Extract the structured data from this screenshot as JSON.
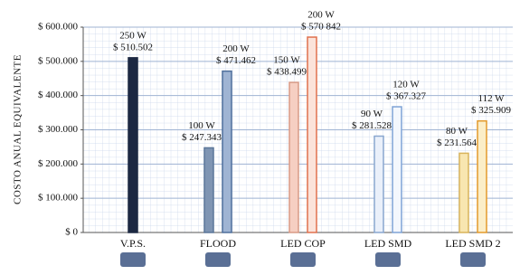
{
  "chart_data": {
    "type": "bar",
    "y_label": "COSTO ANUAL EQUIVALENTE",
    "categories": [
      "V.P.S.",
      "FLOOD",
      "LED COP",
      "LED SMD",
      "LED SMD 2"
    ],
    "series": [
      {
        "values": [
          510502,
          247343,
          438499,
          281528,
          231564
        ],
        "value_labels": [
          "$ 510.502",
          "$ 247.343",
          "$ 438.499",
          "$ 281.528",
          "$ 231.564"
        ],
        "watt_labels": [
          "250 W",
          "100 W",
          "150 W",
          "90 W",
          "80 W"
        ],
        "colors": [
          "#1c2842",
          "#7f95b3",
          "#f6cfc2",
          "#eaf0fa",
          "#f8e6b0"
        ],
        "strokes": [
          "#1c2842",
          "#5b7699",
          "#d89a86",
          "#8aa7cf",
          "#d9b45a"
        ]
      },
      {
        "values": [
          null,
          471462,
          570842,
          367327,
          325909
        ],
        "value_labels": [
          null,
          "$ 471.462",
          "$ 570 842",
          "$ 367.327",
          "$ 325.909"
        ],
        "watt_labels": [
          null,
          "200 W",
          "200 W",
          "120 W",
          "112 W"
        ],
        "colors": [
          null,
          "#9fb4d3",
          "#fbe3da",
          "#f3f7fd",
          "#fbeec8"
        ],
        "strokes": [
          null,
          "#4f6f9c",
          "#e0714e",
          "#7ea3d6",
          "#e39a2c"
        ]
      }
    ],
    "ylim": [
      0,
      600000
    ],
    "yticks": [
      {
        "value": 0,
        "label": "$ 0"
      },
      {
        "value": 100000,
        "label": "$ 100.000"
      },
      {
        "value": 200000,
        "label": "$ 200.000"
      },
      {
        "value": 300000,
        "label": "$ 300.000"
      },
      {
        "value": 400000,
        "label": "$ 400.000"
      },
      {
        "value": 500000,
        "label": "$ 500.000"
      },
      {
        "value": 600000,
        "label": "$ 600.000"
      }
    ],
    "grid": true
  }
}
